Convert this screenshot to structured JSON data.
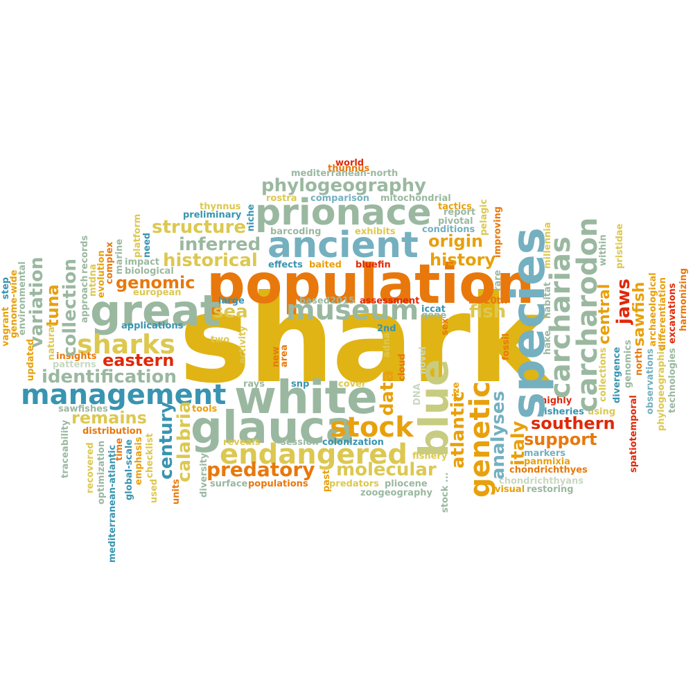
{
  "palette": {
    "gold": "#e0b414",
    "orange": "#e8780c",
    "teal": "#74b0c0",
    "sage": "#9ab8a0",
    "khaki": "#dcc850",
    "red": "#e02808",
    "blue": "#3894b0"
  },
  "words": [
    {
      "text": "shark",
      "color": "#e0b414"
    },
    {
      "text": "population",
      "color": "#e8780c"
    },
    {
      "text": "white",
      "color": "#9ab8a0"
    },
    {
      "text": "species",
      "color": "#74b0c0"
    },
    {
      "text": "great",
      "color": "#9ab8a0"
    },
    {
      "text": "glauca",
      "color": "#9ab8a0"
    },
    {
      "text": "ancient",
      "color": "#74b0c0"
    },
    {
      "text": "prionace",
      "color": "#9ab8a0"
    },
    {
      "text": "blue",
      "color": "#c8cc80"
    },
    {
      "text": "management",
      "color": "#3894b0"
    },
    {
      "text": "stock",
      "color": "#e8a00c"
    },
    {
      "text": "endangered",
      "color": "#dcc850"
    },
    {
      "text": "genetic",
      "color": "#e8a00c"
    },
    {
      "text": "carcharodon",
      "color": "#9ab8a0"
    },
    {
      "text": "carcharias",
      "color": "#9ab8a0"
    },
    {
      "text": "museum",
      "color": "#9ab8a0"
    },
    {
      "text": "sharks",
      "color": "#dcc850"
    },
    {
      "text": "phylogeography",
      "color": "#9ab8a0"
    },
    {
      "text": "molecular",
      "color": "#dcc850"
    },
    {
      "text": "predatory",
      "color": "#e8780c"
    },
    {
      "text": "identification",
      "color": "#9ab8a0"
    },
    {
      "text": "structure",
      "color": "#dcc850"
    },
    {
      "text": "inferred",
      "color": "#9ab8a0"
    },
    {
      "text": "historical",
      "color": "#dcc850"
    },
    {
      "text": "genomic",
      "color": "#e8780c"
    },
    {
      "text": "eastern",
      "color": "#e02808"
    },
    {
      "text": "origin",
      "color": "#e8a00c"
    },
    {
      "text": "history",
      "color": "#e8a00c"
    },
    {
      "text": "remains",
      "color": "#dcc850"
    },
    {
      "text": "support",
      "color": "#e8780c"
    },
    {
      "text": "southern",
      "color": "#e02808"
    },
    {
      "text": "fish",
      "color": "#dcc850"
    },
    {
      "text": "sea",
      "color": "#dcc850"
    },
    {
      "text": "collection",
      "color": "#9ab8a0"
    },
    {
      "text": "variation",
      "color": "#9ab8a0"
    },
    {
      "text": "tuna",
      "color": "#e8a00c"
    },
    {
      "text": "century",
      "color": "#3894b0"
    },
    {
      "text": "calabria",
      "color": "#dcc850"
    },
    {
      "text": "data",
      "color": "#e8a00c"
    },
    {
      "text": "atlantic",
      "color": "#e8a00c"
    },
    {
      "text": "analyses",
      "color": "#74b0c0"
    },
    {
      "text": "italy",
      "color": "#e8a00c"
    },
    {
      "text": "jaws",
      "color": "#e02808"
    },
    {
      "text": "central",
      "color": "#e8a00c"
    },
    {
      "text": "sawfish",
      "color": "#e8a00c"
    },
    {
      "text": "world",
      "color": "#e02808"
    },
    {
      "text": "thunnus",
      "color": "#e8780c"
    },
    {
      "text": "mediterranean-north",
      "color": "#9ab8a0"
    },
    {
      "text": "thynnus",
      "color": "#dcc850"
    },
    {
      "text": "comparison",
      "color": "#74b0c0"
    },
    {
      "text": "mitochondrial",
      "color": "#9ab8a0"
    },
    {
      "text": "preliminary",
      "color": "#3894b0"
    },
    {
      "text": "rostra",
      "color": "#dcc850"
    },
    {
      "text": "tactics",
      "color": "#e8a00c"
    },
    {
      "text": "report",
      "color": "#9ab8a0"
    },
    {
      "text": "pivotal",
      "color": "#9ab8a0"
    },
    {
      "text": "conditions",
      "color": "#74b0c0"
    },
    {
      "text": "barcoding",
      "color": "#9ab8a0"
    },
    {
      "text": "exhibits",
      "color": "#dcc850"
    },
    {
      "text": "effects",
      "color": "#3894b0"
    },
    {
      "text": "baited",
      "color": "#e8a00c"
    },
    {
      "text": "bluefin",
      "color": "#e02808"
    },
    {
      "text": "impact",
      "color": "#9ab8a0"
    },
    {
      "text": "biological",
      "color": "#9ab8a0"
    },
    {
      "text": "european",
      "color": "#dcc850"
    },
    {
      "text": "large",
      "color": "#3894b0"
    },
    {
      "text": "based2015",
      "color": "#9ab8a0"
    },
    {
      "text": "assessment",
      "color": "#e02808"
    },
    {
      "text": "iccat",
      "color": "#3894b0"
    },
    {
      "text": "bc-20th",
      "color": "#e8780c"
    },
    {
      "text": "gene",
      "color": "#9ab8a0"
    },
    {
      "text": "applications",
      "color": "#3894b0"
    },
    {
      "text": "2nd",
      "color": "#3894b0"
    },
    {
      "text": "two",
      "color": "#dcc850"
    },
    {
      "text": "insights",
      "color": "#e8780c"
    },
    {
      "text": "patterns",
      "color": "#c8d8c0"
    },
    {
      "text": "can 1758",
      "color": "#9ab8a0"
    },
    {
      "text": "rays",
      "color": "#9ab8a0"
    },
    {
      "text": "snp",
      "color": "#3894b0"
    },
    {
      "text": "cover",
      "color": "#dcc850"
    },
    {
      "text": "sawfishes",
      "color": "#9ab8a0"
    },
    {
      "text": "tools",
      "color": "#e8a00c"
    },
    {
      "text": "distribution",
      "color": "#e8780c"
    },
    {
      "text": "reveals",
      "color": "#dcc850"
    },
    {
      "text": "session",
      "color": "#9ab8a0"
    },
    {
      "text": "colonization",
      "color": "#3894b0"
    },
    {
      "text": "fishery",
      "color": "#dcc850"
    },
    {
      "text": "populations",
      "color": "#e8780c"
    },
    {
      "text": "surface",
      "color": "#9ab8a0"
    },
    {
      "text": "predators",
      "color": "#dcc850"
    },
    {
      "text": "pliocene",
      "color": "#9ab8a0"
    },
    {
      "text": "zoogeography",
      "color": "#9ab8a0"
    },
    {
      "text": "markers",
      "color": "#74b0c0"
    },
    {
      "text": "panmixia",
      "color": "#e8a00c"
    },
    {
      "text": "chondrichthyes",
      "color": "#e8780c"
    },
    {
      "text": "chondrichthyans",
      "color": "#c8d8c0"
    },
    {
      "text": "visual",
      "color": "#e8a00c"
    },
    {
      "text": "restoring",
      "color": "#9ab8a0"
    },
    {
      "text": "fisheries",
      "color": "#3894b0"
    },
    {
      "text": "using",
      "color": "#dcc850"
    },
    {
      "text": "highly",
      "color": "#e02808"
    },
    {
      "text": "niche",
      "color": "#3894b0"
    },
    {
      "text": "pelagic",
      "color": "#dcc850"
    },
    {
      "text": "improving",
      "color": "#e8780c"
    },
    {
      "text": "millennia",
      "color": "#dcc850"
    },
    {
      "text": "within",
      "color": "#9ab8a0"
    },
    {
      "text": "pristidae",
      "color": "#dcc850"
    },
    {
      "text": "rare",
      "color": "#9ab8a0"
    },
    {
      "text": "habitat",
      "color": "#9ab8a0"
    },
    {
      "text": "hake",
      "color": "#9ab8a0"
    },
    {
      "text": "fossil",
      "color": "#e8780c"
    },
    {
      "text": "sex",
      "color": "#e8780c"
    },
    {
      "text": "adna",
      "color": "#dcc850"
    },
    {
      "text": "cloud",
      "color": "#e8780c"
    },
    {
      "text": "new",
      "color": "#e8780c"
    },
    {
      "text": "area",
      "color": "#e8780c"
    },
    {
      "text": "novel",
      "color": "#c8d8c0"
    },
    {
      "text": "size",
      "color": "#e8a00c"
    },
    {
      "text": "DNA",
      "color": "#c8d8c0"
    },
    {
      "text": "past",
      "color": "#e8a00c"
    },
    {
      "text": "stock ...",
      "color": "#9ab8a0"
    },
    {
      "text": "activity",
      "color": "#dcc850"
    },
    {
      "text": "diversity",
      "color": "#9ab8a0"
    },
    {
      "text": "records",
      "color": "#9ab8a0"
    },
    {
      "text": "evolution",
      "color": "#e8a00c"
    },
    {
      "text": "complex",
      "color": "#e8780c"
    },
    {
      "text": "mtdna",
      "color": "#dcc850"
    },
    {
      "text": "approach",
      "color": "#9ab8a0"
    },
    {
      "text": "marine",
      "color": "#9ab8a0"
    },
    {
      "text": "platform",
      "color": "#dcc850"
    },
    {
      "text": "need",
      "color": "#3894b0"
    },
    {
      "text": "natural",
      "color": "#dcc850"
    },
    {
      "text": "time",
      "color": "#e8780c"
    },
    {
      "text": "global-scale",
      "color": "#3894b0"
    },
    {
      "text": "emphasis",
      "color": "#e8a00c"
    },
    {
      "text": "checklist",
      "color": "#dcc850"
    },
    {
      "text": "used",
      "color": "#dcc850"
    },
    {
      "text": "units",
      "color": "#e8780c"
    },
    {
      "text": "traceability",
      "color": "#9ab8a0"
    },
    {
      "text": "recovered",
      "color": "#dcc850"
    },
    {
      "text": "optimization",
      "color": "#9ab8a0"
    },
    {
      "text": "mediterranean-atlantic",
      "color": "#3894b0"
    },
    {
      "text": "vagrant",
      "color": "#e8a00c"
    },
    {
      "text": "step",
      "color": "#3894b0"
    },
    {
      "text": "genome-wide",
      "color": "#e8a00c"
    },
    {
      "text": "environmental",
      "color": "#9ab8a0"
    },
    {
      "text": "updated",
      "color": "#e8a00c"
    },
    {
      "text": "divergence",
      "color": "#3894b0"
    },
    {
      "text": "genomics",
      "color": "#9ab8a0"
    },
    {
      "text": "north",
      "color": "#e8780c"
    },
    {
      "text": "collections",
      "color": "#dcc850"
    },
    {
      "text": "spatiotemporal",
      "color": "#e02808"
    },
    {
      "text": "observations",
      "color": "#74b0c0"
    },
    {
      "text": "archaeological",
      "color": "#e8a00c"
    },
    {
      "text": "phylogeographic",
      "color": "#dcc850"
    },
    {
      "text": "differentiation",
      "color": "#e8a00c"
    },
    {
      "text": "technologies",
      "color": "#9ab8a0"
    },
    {
      "text": "excavations",
      "color": "#e02808"
    },
    {
      "text": "harmonizing",
      "color": "#e8780c"
    }
  ]
}
